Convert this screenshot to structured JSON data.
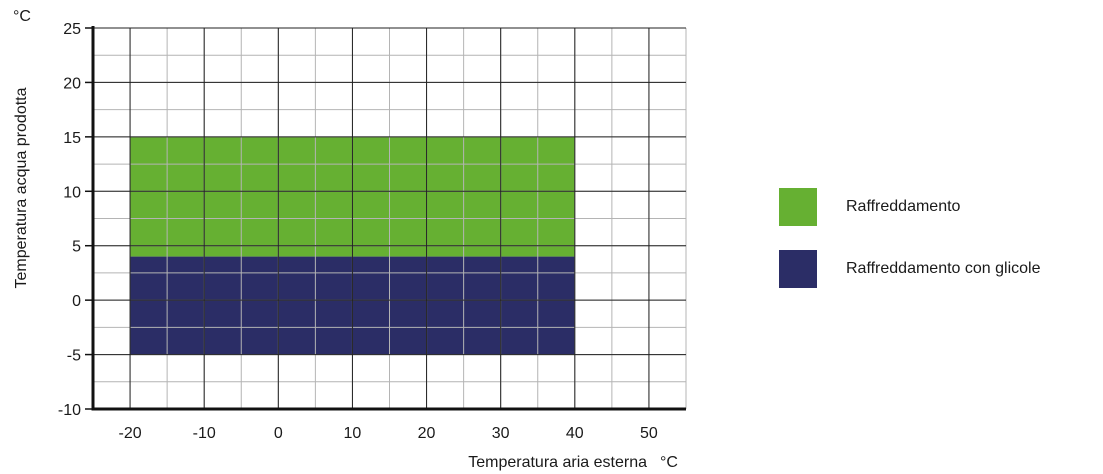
{
  "chart_data": {
    "type": "area",
    "title": "",
    "xlabel": "Temperatura aria esterna",
    "xunit": "°C",
    "ylabel": "Temperatura acqua prodotta",
    "yunit": "°C",
    "xlim": [
      -25,
      55
    ],
    "ylim": [
      -10,
      25
    ],
    "xticks": [
      -20,
      -10,
      0,
      10,
      20,
      30,
      40,
      50
    ],
    "xtick_labels": [
      "-20",
      "-10",
      "0",
      "10",
      "20",
      "30",
      "40",
      "50"
    ],
    "yticks": [
      -10,
      -5,
      0,
      5,
      10,
      15,
      20,
      25
    ],
    "ytick_labels": [
      "-10",
      "-5",
      "0",
      "5",
      "10",
      "15",
      "20",
      "25"
    ],
    "grid": true,
    "minor_grid_step": {
      "x": 5,
      "y": 2.5
    },
    "series": [
      {
        "name": "Raffreddamento",
        "color": "#66b032",
        "x_range": [
          -20,
          40
        ],
        "y_range": [
          4,
          15
        ]
      },
      {
        "name": "Raffreddamento con glicole",
        "color": "#2b2d66",
        "x_range": [
          -20,
          40
        ],
        "y_range": [
          -5,
          4
        ]
      }
    ],
    "legend_position": "right"
  }
}
